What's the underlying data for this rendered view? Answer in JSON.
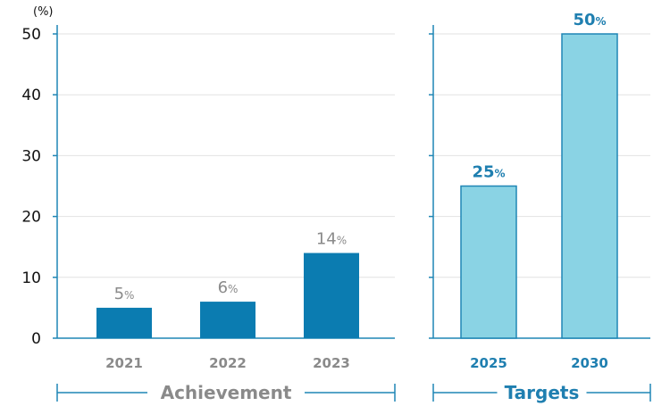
{
  "chart_data": {
    "type": "bar",
    "y_unit": "(%)",
    "ylim": [
      0,
      50
    ],
    "yticks": [
      "0",
      "10",
      "20",
      "30",
      "40",
      "50"
    ],
    "grid": true,
    "groups": [
      {
        "name": "Achievement",
        "categories": [
          "2021",
          "2022",
          "2023"
        ],
        "values": [
          5,
          6,
          14
        ],
        "labels": [
          "5",
          "6",
          "14"
        ],
        "value_suffix": "%",
        "bar_color": "#0b7cb1",
        "text_color": "#8a8a8a"
      },
      {
        "name": "Targets",
        "categories": [
          "2025",
          "2030"
        ],
        "values": [
          25,
          50
        ],
        "labels": [
          "25",
          "50"
        ],
        "value_suffix": "%",
        "bar_color": "#8ad3e4",
        "bar_border": "#1f86b5",
        "text_color": "#1f7fb0"
      }
    ]
  }
}
